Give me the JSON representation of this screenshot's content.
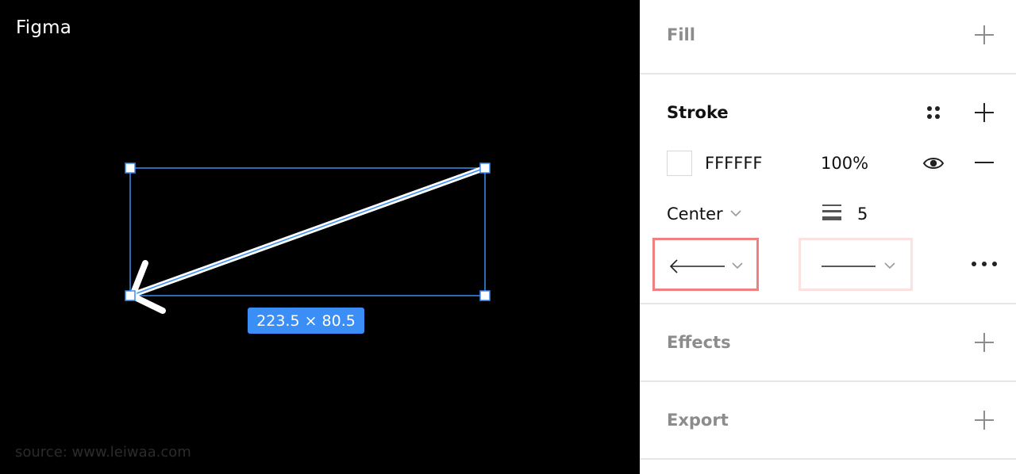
{
  "app": {
    "logo": "Figma",
    "watermark": "source: www.leiwaa.com"
  },
  "canvas": {
    "dimension_label": "223.5 × 80.5",
    "stroke_color": "#FFFFFF",
    "selection_color": "#3A8EF6"
  },
  "panel": {
    "fill": {
      "title": "Fill"
    },
    "stroke": {
      "title": "Stroke",
      "color_hex": "FFFFFF",
      "opacity": "100%",
      "align": "Center",
      "weight": "5",
      "start_point": "arrow-left-line",
      "end_point": "none-line"
    },
    "effects": {
      "title": "Effects"
    },
    "export": {
      "title": "Export"
    }
  },
  "colors": {
    "highlight": "#F08080",
    "highlight_light": "#FDE0E0",
    "muted_text": "#8C8C8C"
  }
}
